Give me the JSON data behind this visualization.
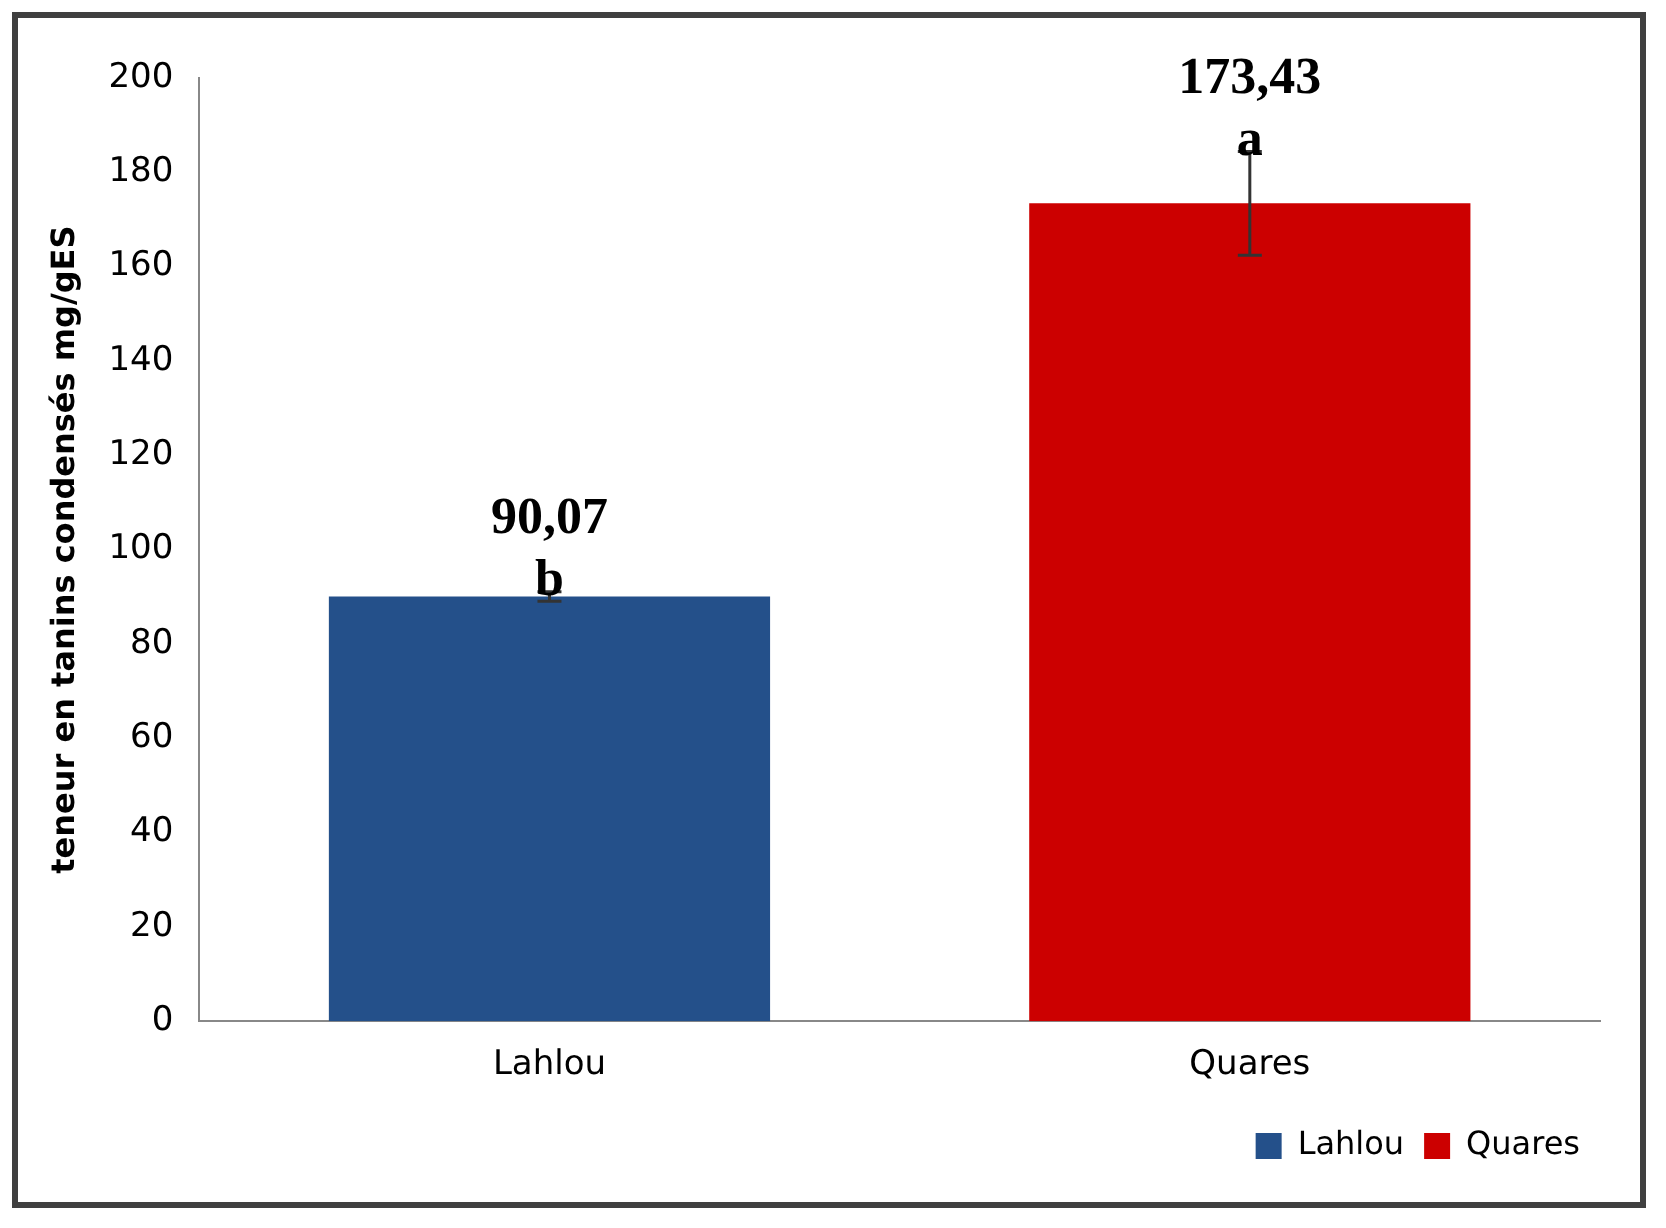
{
  "chart_data": {
    "type": "bar",
    "ylabel": "teneur en tanins condensés mg/gES",
    "categories": [
      "Lahlou",
      "Quares"
    ],
    "series": [
      {
        "name": "Lahlou",
        "color": "#24508a",
        "values": [
          90.07,
          null
        ],
        "errors": [
          1,
          null
        ],
        "value_labels": [
          "90,07",
          null
        ]
      },
      {
        "name": "Quares",
        "color": "#cc0000",
        "values": [
          null,
          173.43
        ],
        "errors": [
          null,
          11
        ],
        "value_labels": [
          null,
          "173,43"
        ]
      }
    ],
    "annotations": [
      {
        "text": "b",
        "x": "Lahlou",
        "y": 90.07
      },
      {
        "text": "a",
        "x": "Quares",
        "y": 173.43
      }
    ],
    "ylim": [
      0,
      200
    ],
    "yticks": [
      0,
      20,
      40,
      60,
      80,
      100,
      120,
      140,
      160,
      180,
      200
    ],
    "grid": false,
    "legend": "bottom right"
  }
}
